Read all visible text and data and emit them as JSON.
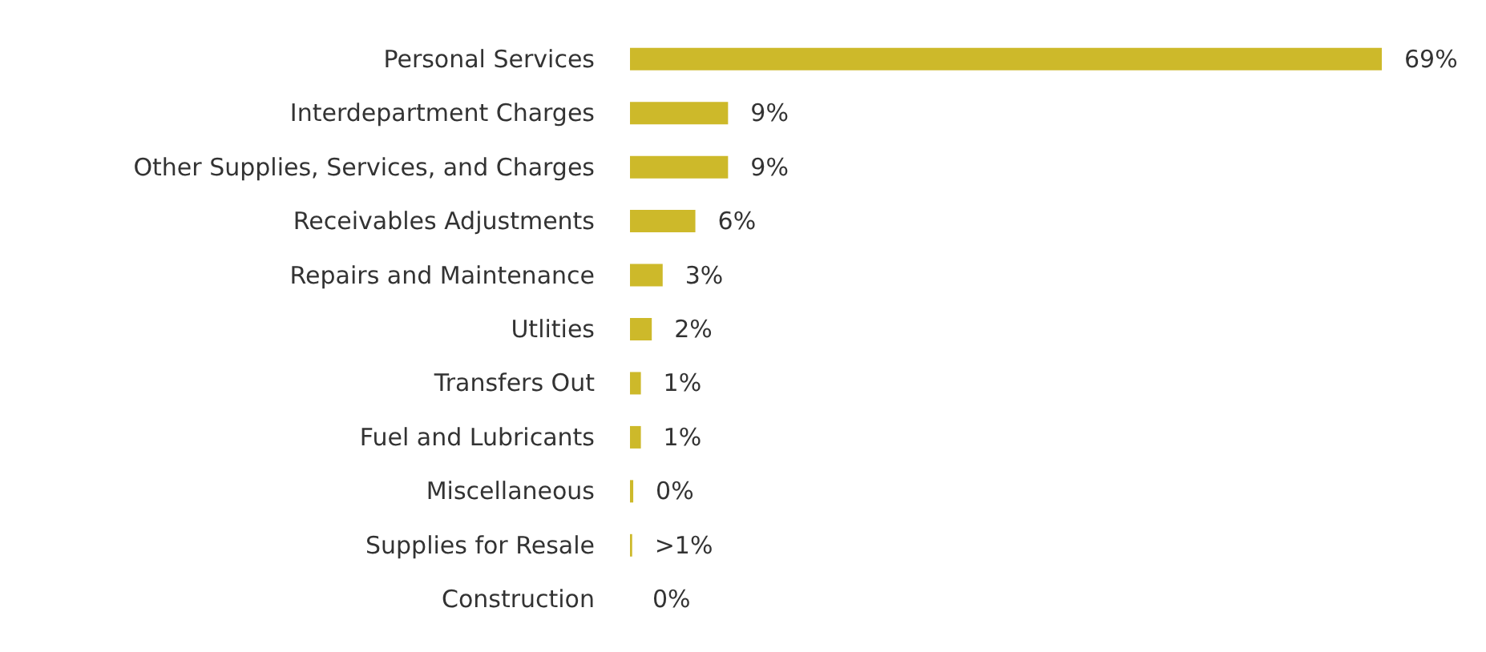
{
  "chart_data": {
    "type": "bar",
    "orientation": "horizontal",
    "categories": [
      "Personal Services",
      "Interdepartment Charges",
      "Other Supplies, Services, and Charges",
      "Receivables Adjustments",
      "Repairs and Maintenance",
      "Utlities",
      "Transfers Out",
      "Fuel and Lubricants",
      "Miscellaneous",
      "Supplies for Resale",
      "Construction"
    ],
    "values": [
      69,
      9,
      9,
      6,
      3,
      2,
      1,
      1,
      0.3,
      0.2,
      0
    ],
    "value_labels": [
      "69%",
      "9%",
      "9%",
      "6%",
      "3%",
      "2%",
      "1%",
      "1%",
      "0%",
      ">1%",
      "0%"
    ],
    "color": "#cdb92a"
  }
}
